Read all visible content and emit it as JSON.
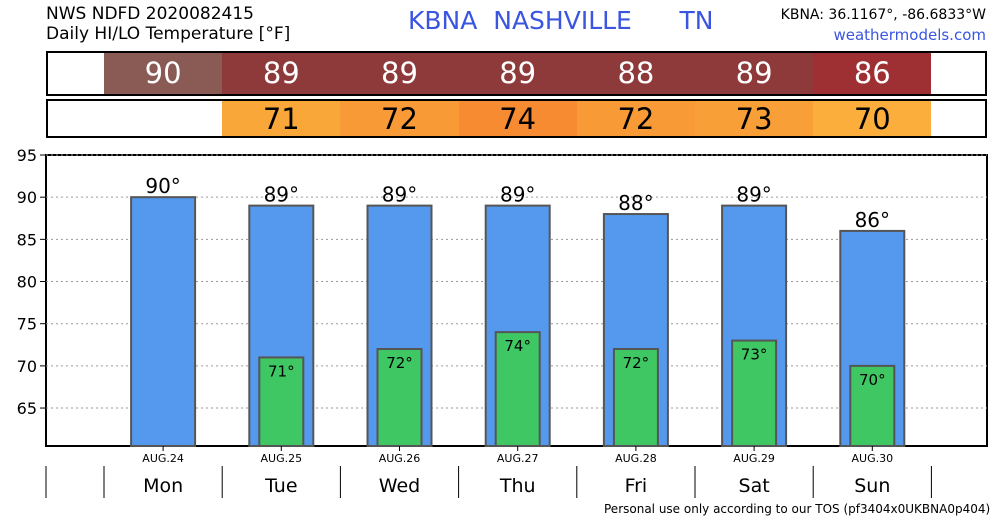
{
  "header": {
    "line1": "NWS NDFD 2020082415",
    "line2": "Daily HI/LO Temperature [°F]",
    "station_title": "KBNA  NASHVILLE      TN",
    "coords": "KBNA: 36.1167°, -86.6833°W",
    "site": "weathermodels.com"
  },
  "bands": {
    "hi": [
      {
        "text": "90",
        "color": "#8a5a55"
      },
      {
        "text": "89",
        "color": "#8e3a3a"
      },
      {
        "text": "89",
        "color": "#8e3a3a"
      },
      {
        "text": "89",
        "color": "#8e3a3a"
      },
      {
        "text": "88",
        "color": "#8e3a3a"
      },
      {
        "text": "89",
        "color": "#8e3a3a"
      },
      {
        "text": "86",
        "color": "#9e3034"
      }
    ],
    "lo": [
      {
        "text": "",
        "color": "#ffffff"
      },
      {
        "text": "71",
        "color": "#faa73a"
      },
      {
        "text": "72",
        "color": "#f89a36"
      },
      {
        "text": "74",
        "color": "#f68b32"
      },
      {
        "text": "72",
        "color": "#f89a36"
      },
      {
        "text": "73",
        "color": "#f99f38"
      },
      {
        "text": "70",
        "color": "#fcae3c"
      }
    ]
  },
  "chart_data": {
    "type": "bar",
    "categories": [
      "Mon",
      "Tue",
      "Wed",
      "Thu",
      "Fri",
      "Sat",
      "Sun"
    ],
    "dates": [
      "AUG.24",
      "AUG.25",
      "AUG.26",
      "AUG.27",
      "AUG.28",
      "AUG.29",
      "AUG.30"
    ],
    "series": [
      {
        "values": [
          90,
          89,
          89,
          89,
          88,
          89,
          86
        ],
        "color": "#5599ee",
        "labels": [
          "90°",
          "89°",
          "89°",
          "89°",
          "88°",
          "89°",
          "86°"
        ]
      },
      {
        "values": [
          null,
          71,
          72,
          74,
          72,
          73,
          70
        ],
        "color": "#3ec763",
        "labels": [
          "",
          "71°",
          "72°",
          "74°",
          "72°",
          "73°",
          "70°"
        ]
      }
    ],
    "yticks": [
      "95",
      "90",
      "85",
      "80",
      "75",
      "70",
      "65"
    ],
    "ylim": [
      60.5,
      95
    ],
    "grid": true
  },
  "footer": "Personal use only according to our TOS (pf3404x0UKBNA0p404)"
}
